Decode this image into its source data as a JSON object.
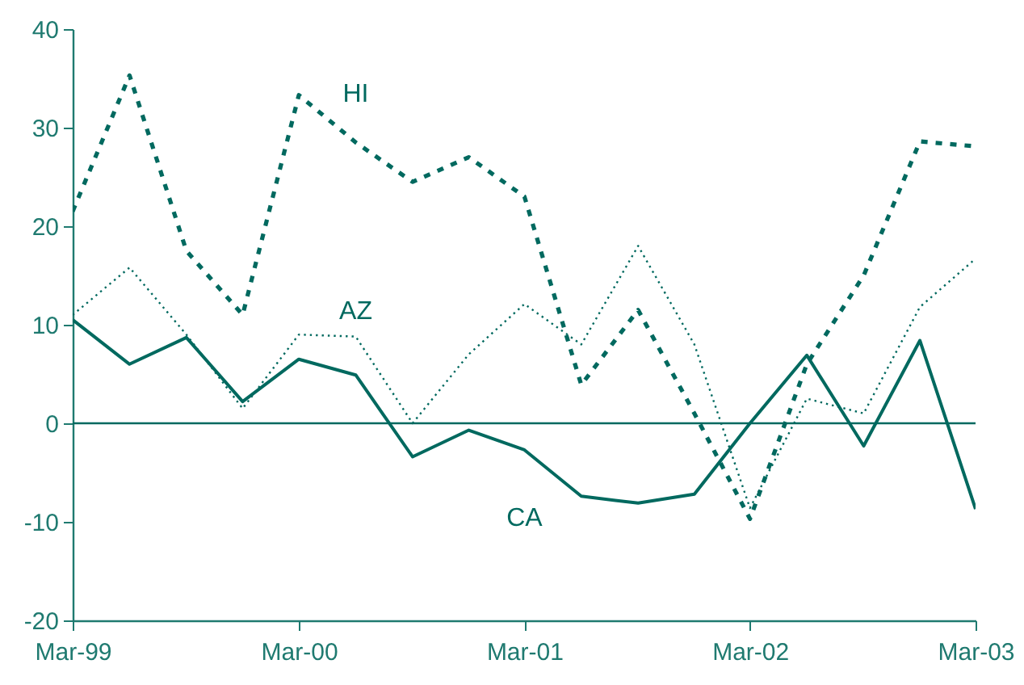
{
  "chart_data": {
    "type": "line",
    "x": [
      "1999-03",
      "1999-06",
      "1999-09",
      "1999-12",
      "2000-03",
      "2000-06",
      "2000-09",
      "2000-12",
      "2001-03",
      "2001-06",
      "2001-09",
      "2001-12",
      "2002-03",
      "2002-06",
      "2002-09",
      "2002-12",
      "2003-03"
    ],
    "series": [
      {
        "name": "HI",
        "color": "#00695f",
        "line_style": "dashed",
        "values": [
          21.5,
          35.3,
          17.5,
          11,
          33.3,
          28.5,
          24.5,
          27,
          23,
          3.9,
          11.5,
          1,
          -9.7,
          6,
          15,
          28.6,
          28.1
        ]
      },
      {
        "name": "AZ",
        "color": "#00695f",
        "line_style": "dotted",
        "values": [
          11,
          15.8,
          9,
          1.5,
          9,
          8.8,
          0,
          7,
          12.1,
          8,
          18,
          8,
          -8.6,
          2.5,
          1,
          11.8,
          16.7
        ]
      },
      {
        "name": "CA",
        "color": "#00695f",
        "line_style": "solid",
        "values": [
          10.5,
          6,
          8.7,
          2.2,
          6.5,
          4.9,
          -3.4,
          -0.7,
          -2.7,
          -7.4,
          -8.1,
          -7.2,
          0,
          6.9,
          -2.3,
          8.4,
          -8.7
        ]
      }
    ],
    "xlim": [
      "1999-03",
      "2003-03"
    ],
    "xticks": [
      {
        "value": "1999-03",
        "label": "Mar-99"
      },
      {
        "value": "2000-03",
        "label": "Mar-00"
      },
      {
        "value": "2001-03",
        "label": "Mar-01"
      },
      {
        "value": "2002-03",
        "label": "Mar-02"
      },
      {
        "value": "2003-03",
        "label": "Mar-03"
      }
    ],
    "ylim": [
      -20,
      40
    ],
    "yticks": [
      -20,
      -10,
      0,
      10,
      20,
      30,
      40
    ],
    "ref_lines": [
      {
        "axis": "y",
        "value": 0,
        "color": "#00695f"
      }
    ],
    "grid": false,
    "marker": "none"
  }
}
